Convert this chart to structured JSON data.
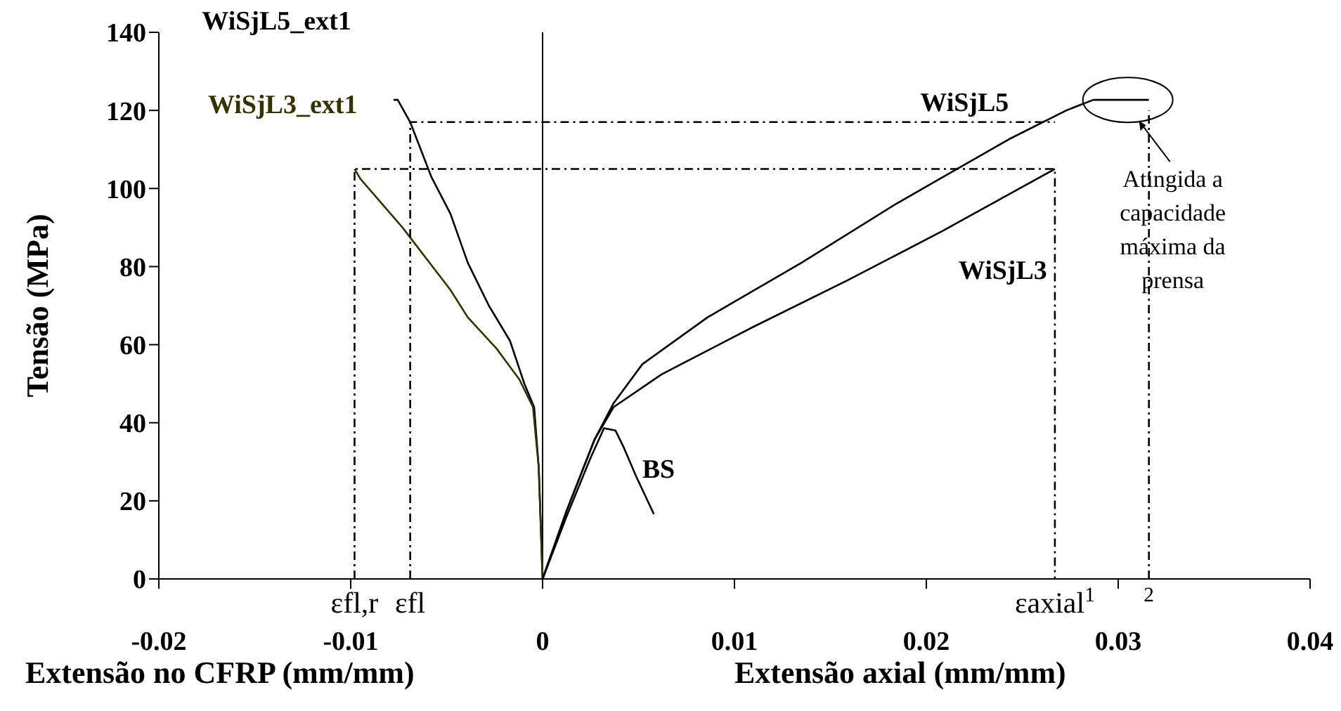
{
  "chart_data": {
    "type": "line",
    "ylabel": "Tensão (MPa)",
    "xlabel": "Extensão no CFRP (mm/mm)",
    "xlim": [
      -0.02,
      0.04
    ],
    "xticks": [
      -0.02,
      -0.01,
      0,
      0.01,
      0.02,
      0.03,
      0.04
    ],
    "ylim": [
      0,
      140
    ],
    "yticks": [
      0,
      20,
      40,
      60,
      80,
      100,
      120,
      140
    ],
    "marker": "none",
    "ref_lines": [
      {
        "axis": "x",
        "value": 0,
        "color": "#000000",
        "line_style": "solid"
      }
    ],
    "series": [
      {
        "name": "WiSjL5_ext1",
        "color": "#000000",
        "x": [
          -0.00777,
          -0.00755,
          -0.0069,
          -0.0058,
          -0.0048,
          -0.0039,
          -0.0028,
          -0.0017,
          -0.00095,
          -0.00044,
          -0.0002,
          0
        ],
        "values": [
          122.7,
          122.7,
          117,
          103,
          93.5,
          81,
          70,
          61,
          50,
          44,
          28.5,
          0
        ]
      },
      {
        "name": "WiSjL3_ext1",
        "color": "#333300",
        "x": [
          -0.0098,
          -0.0095,
          -0.0073,
          -0.0048,
          -0.0039,
          -0.0024,
          -0.0012,
          -0.0005,
          -0.0002,
          0
        ],
        "values": [
          105,
          102.5,
          90,
          74,
          67,
          59,
          51,
          44,
          28.5,
          0
        ]
      },
      {
        "name": "WiSjL5",
        "color": "#000000",
        "x": [
          0,
          0.00125,
          0.0027,
          0.0037,
          0.0052,
          0.0086,
          0.0135,
          0.0184,
          0.0243,
          0.0273,
          0.0287,
          0.0316
        ],
        "values": [
          0,
          17.4,
          35.6,
          45,
          55,
          67,
          81,
          96,
          112.6,
          120,
          122.7,
          122.7
        ]
      },
      {
        "name": "WiSjL3",
        "color": "#000000",
        "x": [
          0,
          0.00125,
          0.0027,
          0.0037,
          0.0062,
          0.011,
          0.0159,
          0.0208,
          0.0267
        ],
        "values": [
          0,
          17.4,
          35.6,
          44,
          52.4,
          64.6,
          76.5,
          89,
          105
        ]
      },
      {
        "name": "BS",
        "color": "#000000",
        "x": [
          0,
          0.00125,
          0.0025,
          0.0032,
          0.0038,
          0.0042,
          0.0049,
          0.0058
        ],
        "values": [
          0,
          16,
          31,
          38.6,
          38,
          34,
          26,
          16.6
        ]
      },
      {
        "color": "#000000",
        "line_style": "dashed",
        "x": [
          -0.0098,
          -0.0098,
          0.0267,
          0.0267
        ],
        "values": [
          0,
          105,
          105,
          0
        ]
      },
      {
        "color": "#000000",
        "line_style": "dashed",
        "x": [
          -0.0069,
          -0.0069,
          0.0267
        ],
        "values": [
          0,
          117,
          117
        ]
      },
      {
        "color": "#000000",
        "line_style": "dashed",
        "x": [
          0.0316,
          0.0316
        ],
        "values": [
          0,
          120
        ]
      }
    ],
    "annotations": [
      {
        "text": "Atingida a capacidade máxima da prensa",
        "x": 0.0305,
        "y": 122.7
      },
      "Extensão axial (mm/mm)",
      {
        "text": "εfl,r",
        "x": -0.0098,
        "y": 0
      },
      {
        "text": "εfl",
        "x": -0.0069,
        "y": 0
      },
      {
        "text": "εaxial$^{1}$",
        "x": 0.0267,
        "y": 0
      },
      {
        "text": "$^{2}$",
        "x": 0.0316,
        "y": 0
      }
    ]
  }
}
